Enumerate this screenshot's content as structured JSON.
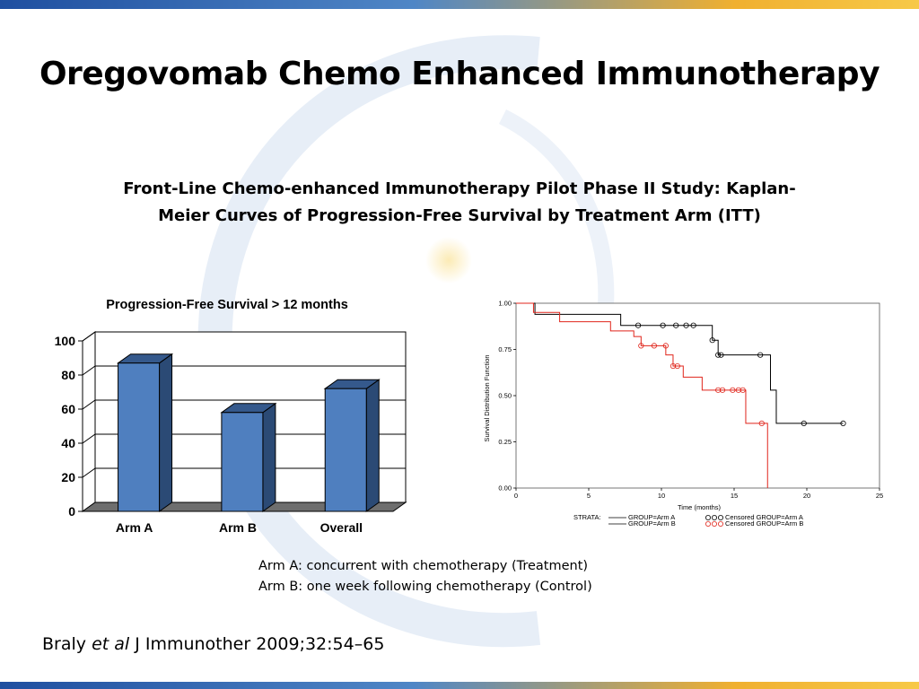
{
  "slide": {
    "title": "Oregovomab Chemo Enhanced Immunotherapy",
    "subtitle_line1": "Front-Line Chemo-enhanced Immunotherapy Pilot Phase II Study: Kaplan-",
    "subtitle_line2": "Meier Curves of Progression-Free Survival by Treatment Arm (ITT)",
    "note_arm_a": "Arm A: concurrent with chemotherapy (Treatment)",
    "note_arm_b": "Arm B: one week following chemotherapy (Control)",
    "citation_author": "Braly ",
    "citation_etal": "et al",
    "citation_rest": " J Immunother 2009;32:54–65"
  },
  "colors": {
    "bar_front": "#4f7fbf",
    "bar_side": "#2b4a75",
    "bar_top": "#35598c",
    "arm_a": "#000000",
    "arm_b": "#e0251b",
    "band_blue": "#1f4fa0",
    "band_gold": "#f0b030"
  },
  "chart_data": [
    {
      "type": "bar",
      "title": "Progression-Free Survival > 12 months",
      "categories": [
        "Arm A",
        "Arm B",
        "Overall"
      ],
      "values": [
        87,
        58,
        72
      ],
      "xlabel": "",
      "ylabel": "",
      "ylim": [
        0,
        100
      ],
      "yticks": [
        "0",
        "20",
        "40",
        "60",
        "80",
        "100"
      ],
      "grid": true,
      "style": "3d"
    },
    {
      "type": "line",
      "subtype": "kaplan-meier",
      "xlabel": "Time (months)",
      "ylabel": "Survival Distribution Function",
      "xlim": [
        0,
        25
      ],
      "ylim": [
        0,
        1
      ],
      "xticks": [
        "0",
        "5",
        "10",
        "15",
        "20",
        "25"
      ],
      "yticks": [
        "0.00",
        "0.25",
        "0.50",
        "0.75",
        "1.00"
      ],
      "legend": {
        "strata_label": "STRATA:",
        "arm_a_line": "GROUP=Arm A",
        "arm_b_line": "GROUP=Arm B",
        "arm_a_censored": "Censored GROUP=Arm A",
        "arm_b_censored": "Censored GROUP=Arm B",
        "position": "bottom"
      },
      "series": [
        {
          "name": "GROUP=Arm A",
          "steps": [
            [
              0,
              1.0
            ],
            [
              1.3,
              0.94
            ],
            [
              7.2,
              0.88
            ],
            [
              13.5,
              0.8
            ],
            [
              13.9,
              0.72
            ],
            [
              17.5,
              0.53
            ],
            [
              17.9,
              0.35
            ],
            [
              22.5,
              0.35
            ]
          ],
          "censored": [
            [
              8.4,
              0.88
            ],
            [
              10.1,
              0.88
            ],
            [
              11.0,
              0.88
            ],
            [
              11.7,
              0.88
            ],
            [
              12.2,
              0.88
            ],
            [
              13.5,
              0.8
            ],
            [
              13.9,
              0.72
            ],
            [
              14.1,
              0.72
            ],
            [
              16.8,
              0.72
            ],
            [
              19.8,
              0.35
            ],
            [
              22.5,
              0.35
            ]
          ]
        },
        {
          "name": "GROUP=Arm B",
          "steps": [
            [
              0,
              1.0
            ],
            [
              1.2,
              0.95
            ],
            [
              3.0,
              0.9
            ],
            [
              6.5,
              0.85
            ],
            [
              8.1,
              0.82
            ],
            [
              8.6,
              0.77
            ],
            [
              10.3,
              0.72
            ],
            [
              10.8,
              0.66
            ],
            [
              11.5,
              0.6
            ],
            [
              12.8,
              0.53
            ],
            [
              15.8,
              0.35
            ],
            [
              17.3,
              0.0
            ]
          ],
          "censored": [
            [
              8.6,
              0.77
            ],
            [
              9.5,
              0.77
            ],
            [
              10.3,
              0.77
            ],
            [
              10.8,
              0.66
            ],
            [
              11.1,
              0.66
            ],
            [
              13.9,
              0.53
            ],
            [
              14.2,
              0.53
            ],
            [
              14.9,
              0.53
            ],
            [
              15.3,
              0.53
            ],
            [
              15.6,
              0.53
            ],
            [
              16.9,
              0.35
            ]
          ]
        }
      ]
    }
  ]
}
